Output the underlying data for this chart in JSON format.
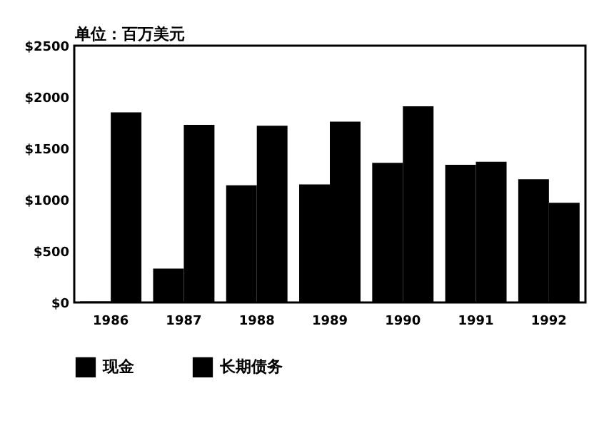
{
  "chart_data": {
    "type": "bar",
    "ylabel": "单位：百万美元",
    "categories": [
      "1986",
      "1987",
      "1988",
      "1989",
      "1990",
      "1991",
      "1992"
    ],
    "series": [
      {
        "name": "现金",
        "color": "#000000",
        "values": [
          10,
          330,
          1140,
          1150,
          1360,
          1340,
          1200
        ]
      },
      {
        "name": "长期债务",
        "color": "#000000",
        "values": [
          1850,
          1730,
          1720,
          1760,
          1910,
          1370,
          970
        ]
      }
    ],
    "ylim": [
      0,
      2500
    ],
    "yticks": [
      {
        "value": 0,
        "label": "$0"
      },
      {
        "value": 500,
        "label": "$500"
      },
      {
        "value": 1000,
        "label": "$1000"
      },
      {
        "value": 1500,
        "label": "$1500"
      },
      {
        "value": 2000,
        "label": "$2000"
      },
      {
        "value": 2500,
        "label": "$2500"
      }
    ],
    "grid": false,
    "legend": "bottom"
  }
}
